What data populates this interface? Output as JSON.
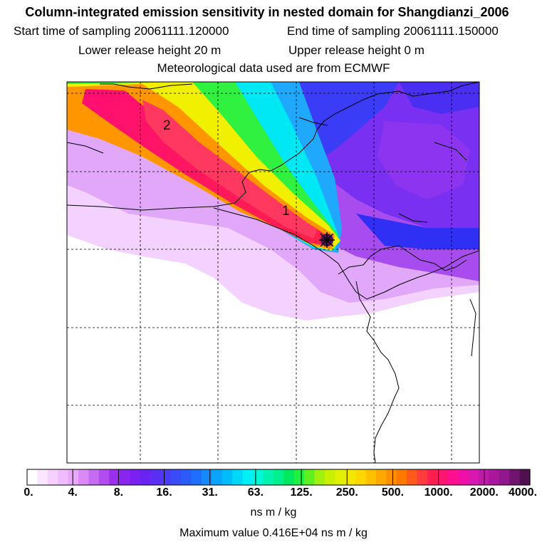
{
  "header": {
    "title": "Column-integrated emission sensitivity in nested domain for Shangdianzi_2006",
    "start_label": "Start time of sampling 20061111.120000",
    "end_label": "End time of sampling 20061111.150000",
    "lower_label": "Lower release height   20 m",
    "upper_label": "Upper release height    0 m",
    "met_label": "Meteorological data used are from ECMWF"
  },
  "chart_data": {
    "type": "heatmap",
    "title": "Column-integrated emission sensitivity in nested domain for Shangdianzi_2006",
    "grid": true,
    "contour_labels": [
      "1",
      "2"
    ],
    "release_site_marker": "star",
    "colorbar": {
      "tick_labels": [
        "0.",
        "4.",
        "8.",
        "16.",
        "31.",
        "63.",
        "125.",
        "250.",
        "500.",
        "1000.",
        "2000.",
        "4000."
      ],
      "tick_values": [
        0,
        4,
        8,
        16,
        31,
        63,
        125,
        250,
        500,
        1000,
        2000,
        4000
      ],
      "colors": [
        "#ffffff",
        "#fbe6ff",
        "#f6d0ff",
        "#f0bbff",
        "#e9a8fb",
        "#d98af6",
        "#c66cf2",
        "#b24cf0",
        "#9b30ee",
        "#8a26ee",
        "#7a20f0",
        "#6a24f2",
        "#5a2ef4",
        "#4a3cf6",
        "#3a4cf8",
        "#2a5cfa",
        "#1e70fc",
        "#148afd",
        "#0aa4fd",
        "#00bcfc",
        "#00d8fa",
        "#00f0f6",
        "#00f8d8",
        "#00f4b0",
        "#00f090",
        "#00e860",
        "#20f040",
        "#60f020",
        "#a0f010",
        "#c8f000",
        "#e0f000",
        "#f4e800",
        "#ffd800",
        "#ffc000",
        "#ffa800",
        "#ff9000",
        "#ff7800",
        "#ff5a1a",
        "#ff3c3c",
        "#ff2050",
        "#ff1470",
        "#ff1090",
        "#f010a8",
        "#d818b0",
        "#c018a8",
        "#a8189c",
        "#90188c",
        "#701470",
        "#501050"
      ],
      "unit": "ns m / kg"
    },
    "max_value": 4160,
    "max_value_text": "Maximum value  0.416E+04 ns m / kg"
  }
}
